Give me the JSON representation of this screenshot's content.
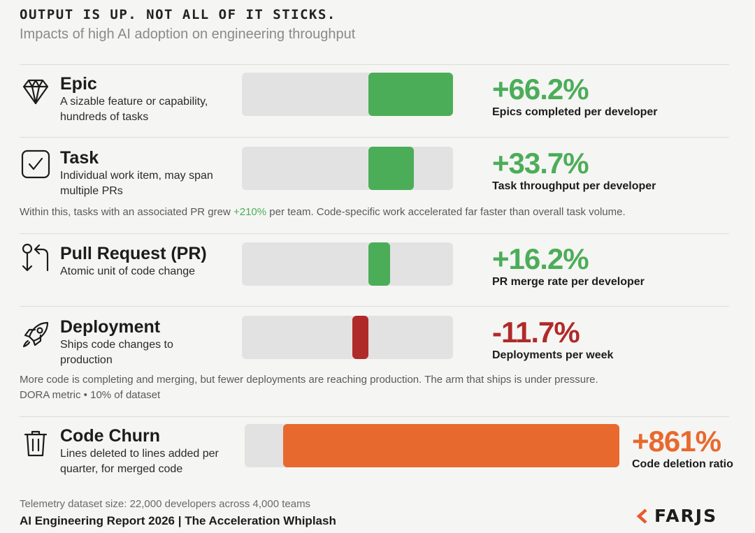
{
  "header": {
    "title": "OUTPUT IS UP. NOT ALL OF IT STICKS.",
    "subtitle": "Impacts of high AI adoption on engineering throughput"
  },
  "rows": [
    {
      "icon": "diamond-icon",
      "name": "Epic",
      "desc": "A sizable feature or capability, hundreds of tasks",
      "value": "+66.2%",
      "metric": "Epics completed per developer",
      "color": "#4cad59"
    },
    {
      "icon": "checkbox-icon",
      "name": "Task",
      "desc": "Individual work item, may span multiple PRs",
      "value": "+33.7%",
      "metric": "Task throughput per developer",
      "color": "#4cad59"
    },
    {
      "icon": "pull-request-icon",
      "name": "Pull Request (PR)",
      "desc": "Atomic unit of code change",
      "value": "+16.2%",
      "metric": "PR merge rate per developer",
      "color": "#4cad59"
    },
    {
      "icon": "rocket-icon",
      "name": "Deployment",
      "desc": "Ships code changes to production",
      "value": "-11.7%",
      "metric": "Deployments per week",
      "color": "#b02a2a"
    },
    {
      "icon": "trash-icon",
      "name": "Code Churn",
      "desc": "Lines deleted to lines added per quarter, for merged code",
      "value": "+861%",
      "metric": "Code deletion ratio",
      "color": "#e8692e"
    }
  ],
  "notes": {
    "task_pre": "Within this, tasks with an associated PR grew ",
    "task_hl": "+210%",
    "task_post": " per team. Code-specific work accelerated far faster than overall task volume.",
    "deploy_line1": "More code is completing and merging, but fewer deployments are reaching production. The arm that ships is under pressure.",
    "deploy_line2": "DORA metric • 10% of dataset"
  },
  "footer": {
    "dataset": "Telemetry dataset size: 22,000 developers across 4,000 teams",
    "report": "AI Engineering Report 2026 | The Acceleration Whiplash",
    "logo": "FARJS"
  },
  "chart_data": {
    "type": "bar",
    "title": "OUTPUT IS UP. NOT ALL OF IT STICKS.",
    "subtitle": "Impacts of high AI adoption on engineering throughput",
    "categories": [
      "Epic",
      "Task",
      "Pull Request (PR)",
      "Deployment",
      "Code Churn"
    ],
    "values": [
      66.2,
      33.7,
      16.2,
      -11.7,
      861
    ],
    "units": "%",
    "colors": {
      "positive": "#4cad59",
      "negative": "#b02a2a",
      "churn": "#e8692e",
      "track": "#e2e2e2"
    }
  }
}
